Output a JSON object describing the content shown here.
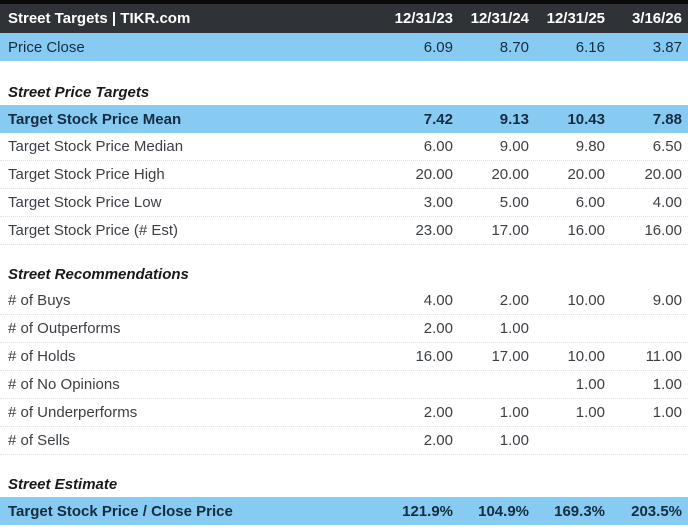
{
  "header": {
    "title": "Street Targets | TIKR.com",
    "columns": [
      "12/31/23",
      "12/31/24",
      "12/31/25",
      "3/16/26"
    ]
  },
  "price_close": {
    "label": "Price Close",
    "values": [
      "6.09",
      "8.70",
      "6.16",
      "3.87"
    ]
  },
  "sections": [
    {
      "title": "Street Price Targets",
      "rows": [
        {
          "label": "Target Stock Price Mean",
          "values": [
            "7.42",
            "9.13",
            "10.43",
            "7.88"
          ],
          "highlight": true,
          "bold": true
        },
        {
          "label": "Target Stock Price Median",
          "values": [
            "6.00",
            "9.00",
            "9.80",
            "6.50"
          ],
          "highlight": false,
          "bold": false
        },
        {
          "label": "Target Stock Price High",
          "values": [
            "20.00",
            "20.00",
            "20.00",
            "20.00"
          ],
          "highlight": false,
          "bold": false
        },
        {
          "label": "Target Stock Price Low",
          "values": [
            "3.00",
            "5.00",
            "6.00",
            "4.00"
          ],
          "highlight": false,
          "bold": false
        },
        {
          "label": "Target Stock Price (# Est)",
          "values": [
            "23.00",
            "17.00",
            "16.00",
            "16.00"
          ],
          "highlight": false,
          "bold": false
        }
      ]
    },
    {
      "title": "Street Recommendations",
      "rows": [
        {
          "label": "# of Buys",
          "values": [
            "4.00",
            "2.00",
            "10.00",
            "9.00"
          ],
          "highlight": false,
          "bold": false
        },
        {
          "label": "# of Outperforms",
          "values": [
            "2.00",
            "1.00",
            "",
            ""
          ],
          "highlight": false,
          "bold": false
        },
        {
          "label": "# of Holds",
          "values": [
            "16.00",
            "17.00",
            "10.00",
            "11.00"
          ],
          "highlight": false,
          "bold": false
        },
        {
          "label": "# of No Opinions",
          "values": [
            "",
            "",
            "1.00",
            "1.00"
          ],
          "highlight": false,
          "bold": false
        },
        {
          "label": "# of Underperforms",
          "values": [
            "2.00",
            "1.00",
            "1.00",
            "1.00"
          ],
          "highlight": false,
          "bold": false
        },
        {
          "label": "# of Sells",
          "values": [
            "2.00",
            "1.00",
            "",
            ""
          ],
          "highlight": false,
          "bold": false
        }
      ]
    },
    {
      "title": "Street Estimate",
      "rows": [
        {
          "label": "Target Stock Price / Close Price",
          "values": [
            "121.9%",
            "104.9%",
            "169.3%",
            "203.5%"
          ],
          "highlight": true,
          "bold": true
        }
      ]
    }
  ],
  "colors": {
    "header_bg": "#2f3337",
    "header_fg": "#ffffff",
    "top_border": "#0b0b0b",
    "accent": "#87cbf3",
    "accent_fg": "#152c42",
    "row_fg": "#3c4045",
    "section_fg": "#17191c"
  }
}
